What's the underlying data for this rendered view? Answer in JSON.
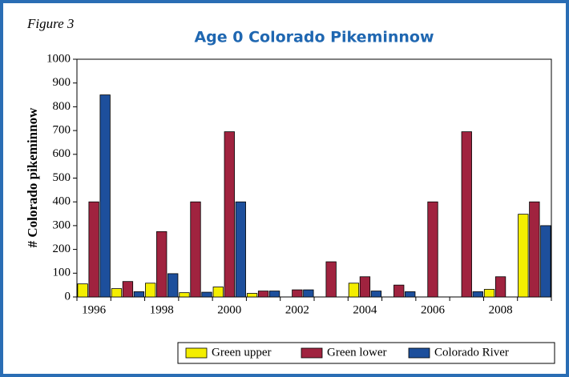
{
  "figure_label": "Figure 3",
  "chart_data": {
    "type": "bar",
    "title": "Age 0 Colorado Pikeminnow",
    "ylabel": "# Colorado pikeminnow",
    "categories": [
      "1996",
      null,
      "1998",
      null,
      "2000",
      null,
      "2002",
      null,
      "2004",
      null,
      "2006",
      null,
      "2008",
      null
    ],
    "series": [
      {
        "name": "Green upper",
        "color": "#f4ee00",
        "values": [
          55,
          35,
          58,
          18,
          42,
          15,
          0,
          0,
          58,
          0,
          0,
          0,
          32,
          348
        ]
      },
      {
        "name": "Green lower",
        "color": "#a0233f",
        "values": [
          400,
          65,
          275,
          400,
          695,
          25,
          30,
          148,
          85,
          50,
          400,
          695,
          85,
          400
        ]
      },
      {
        "name": "Colorado River",
        "color": "#1d4f9c",
        "values": [
          850,
          22,
          98,
          20,
          400,
          25,
          30,
          0,
          25,
          22,
          0,
          22,
          0,
          300
        ]
      }
    ],
    "ylim": [
      0,
      1000
    ],
    "yticks": [
      0,
      100,
      200,
      300,
      400,
      500,
      600,
      700,
      800,
      900,
      1000
    ]
  }
}
